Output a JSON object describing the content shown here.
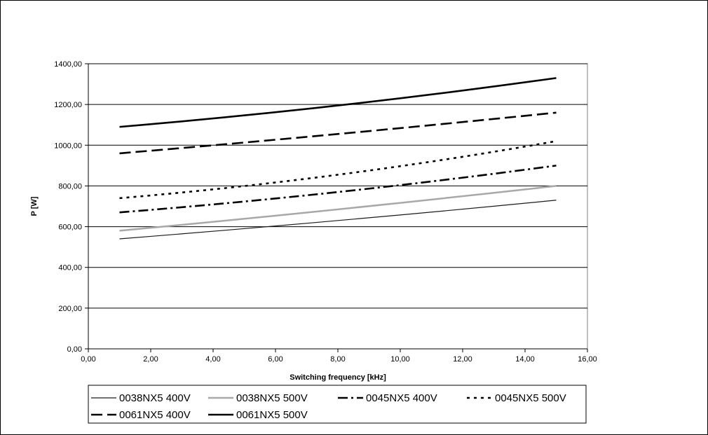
{
  "chart_data": {
    "type": "line",
    "title": "",
    "xlabel": "Switching frequency [kHz]",
    "ylabel": "P [W]",
    "xlim": [
      0,
      16
    ],
    "ylim": [
      0,
      1400
    ],
    "x_ticks": [
      "0,00",
      "2,00",
      "4,00",
      "6,00",
      "8,00",
      "10,00",
      "12,00",
      "14,00",
      "16,00"
    ],
    "y_ticks": [
      "0,00",
      "200,00",
      "400,00",
      "600,00",
      "800,00",
      "1000,00",
      "1200,00",
      "1400,00"
    ],
    "grid": "horizontal",
    "legend_position": "bottom",
    "series": [
      {
        "name": "0038NX5 400V",
        "color": "#1a1a1a",
        "style": "thin-solid",
        "points": [
          [
            1,
            540
          ],
          [
            8,
            630
          ],
          [
            15,
            730
          ]
        ]
      },
      {
        "name": "0038NX5 500V",
        "color": "#a8a8a8",
        "style": "thick-solid",
        "points": [
          [
            1,
            580
          ],
          [
            8,
            685
          ],
          [
            15,
            800
          ]
        ]
      },
      {
        "name": "0045NX5 400V",
        "color": "#000000",
        "style": "dash-dot",
        "points": [
          [
            1,
            670
          ],
          [
            8,
            770
          ],
          [
            15,
            900
          ]
        ]
      },
      {
        "name": "0045NX5 500V",
        "color": "#000000",
        "style": "dotted",
        "points": [
          [
            1,
            740
          ],
          [
            8,
            855
          ],
          [
            15,
            1020
          ]
        ]
      },
      {
        "name": "0061NX5 400V",
        "color": "#000000",
        "style": "dashed",
        "points": [
          [
            1,
            960
          ],
          [
            8,
            1055
          ],
          [
            15,
            1160
          ]
        ]
      },
      {
        "name": "0061NX5 500V",
        "color": "#000000",
        "style": "solid",
        "points": [
          [
            1,
            1090
          ],
          [
            8,
            1195
          ],
          [
            15,
            1330
          ]
        ]
      }
    ]
  }
}
